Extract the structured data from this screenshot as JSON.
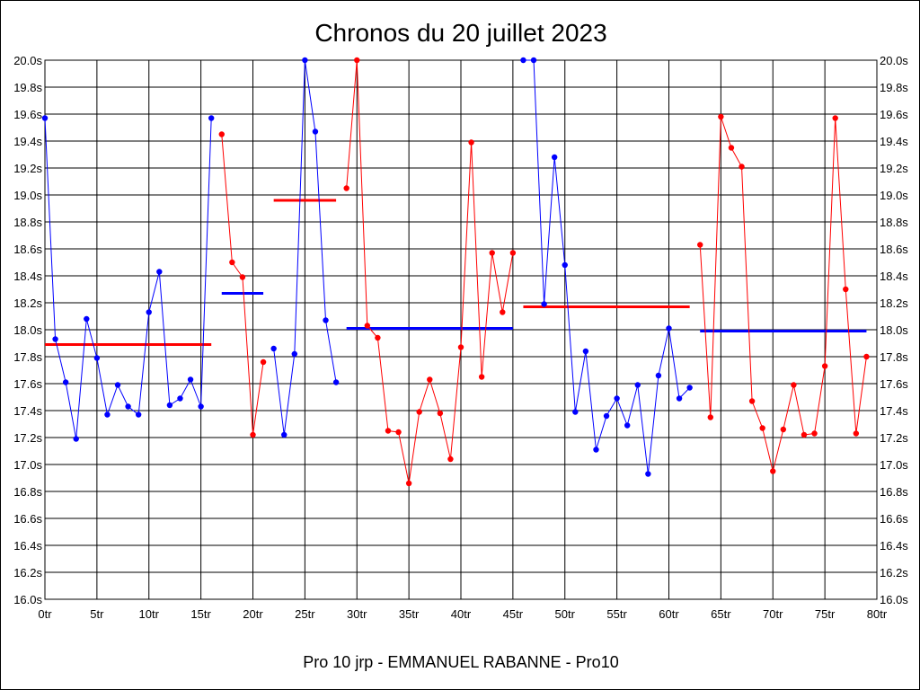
{
  "chart_data": {
    "type": "line",
    "title": "Chronos du 20 juillet 2023",
    "xlabel": "Pro 10 jrp - EMMANUEL RABANNE - Pro10",
    "ylabel": "",
    "xlim": [
      0,
      80
    ],
    "ylim": [
      16.0,
      20.0
    ],
    "x_tick_step": 5,
    "y_tick_step": 0.2,
    "x_tick_suffix": "tr",
    "y_tick_suffix": "s",
    "grid": true,
    "x_ticks": [
      "0tr",
      "5tr",
      "10tr",
      "15tr",
      "20tr",
      "25tr",
      "30tr",
      "35tr",
      "40tr",
      "45tr",
      "50tr",
      "55tr",
      "60tr",
      "65tr",
      "70tr",
      "75tr",
      "80tr"
    ],
    "y_ticks": [
      "16.0s",
      "16.2s",
      "16.4s",
      "16.6s",
      "16.8s",
      "17.0s",
      "17.2s",
      "17.4s",
      "17.6s",
      "17.8s",
      "18.0s",
      "18.2s",
      "18.4s",
      "18.6s",
      "18.8s",
      "19.0s",
      "19.2s",
      "19.4s",
      "19.6s",
      "19.8s",
      "20.0s"
    ],
    "colors": {
      "blue": "#0000ff",
      "red": "#ff0000",
      "grid": "#000000"
    },
    "segments": [
      {
        "color": "blue",
        "start": 0,
        "values": [
          19.57,
          17.93,
          17.61,
          17.19,
          18.08,
          17.79,
          17.37,
          17.59,
          17.43,
          17.37,
          18.13,
          18.43,
          17.44,
          17.49,
          17.63,
          17.43,
          19.57
        ]
      },
      {
        "color": "red",
        "start": 17,
        "values": [
          19.45,
          18.5,
          18.39,
          17.22,
          17.76
        ]
      },
      {
        "color": "blue",
        "start": 22,
        "values": [
          17.86,
          17.22,
          17.82,
          20.0,
          19.47,
          18.07,
          17.61
        ]
      },
      {
        "color": "red",
        "start": 29,
        "values": [
          19.05,
          20.0,
          18.03,
          17.94,
          17.25,
          17.24,
          16.86,
          17.39,
          17.63,
          17.38,
          17.04,
          17.87,
          19.39,
          17.65,
          18.57,
          18.13,
          18.57
        ]
      },
      {
        "color": "blue",
        "start": 46,
        "values": [
          20.0,
          20.0,
          18.19,
          19.28,
          18.48,
          17.39,
          17.84,
          17.11,
          17.36,
          17.49,
          17.29,
          17.59,
          16.93,
          17.66,
          18.01,
          17.49,
          17.57
        ]
      },
      {
        "color": "red",
        "start": 63,
        "values": [
          18.63,
          17.35,
          19.58,
          19.35,
          19.21,
          17.47,
          17.27,
          16.95,
          17.26,
          17.59,
          17.22,
          17.23,
          17.73,
          19.57,
          18.3,
          17.23,
          17.8
        ]
      }
    ],
    "averages": [
      {
        "color": "red",
        "from": 0,
        "to": 16,
        "value": 17.89
      },
      {
        "color": "blue",
        "from": 17,
        "to": 21,
        "value": 18.27
      },
      {
        "color": "red",
        "from": 22,
        "to": 28,
        "value": 18.96
      },
      {
        "color": "blue",
        "from": 29,
        "to": 45,
        "value": 18.01
      },
      {
        "color": "red",
        "from": 46,
        "to": 62,
        "value": 18.17
      },
      {
        "color": "blue",
        "from": 63,
        "to": 79,
        "value": 17.99
      }
    ]
  }
}
